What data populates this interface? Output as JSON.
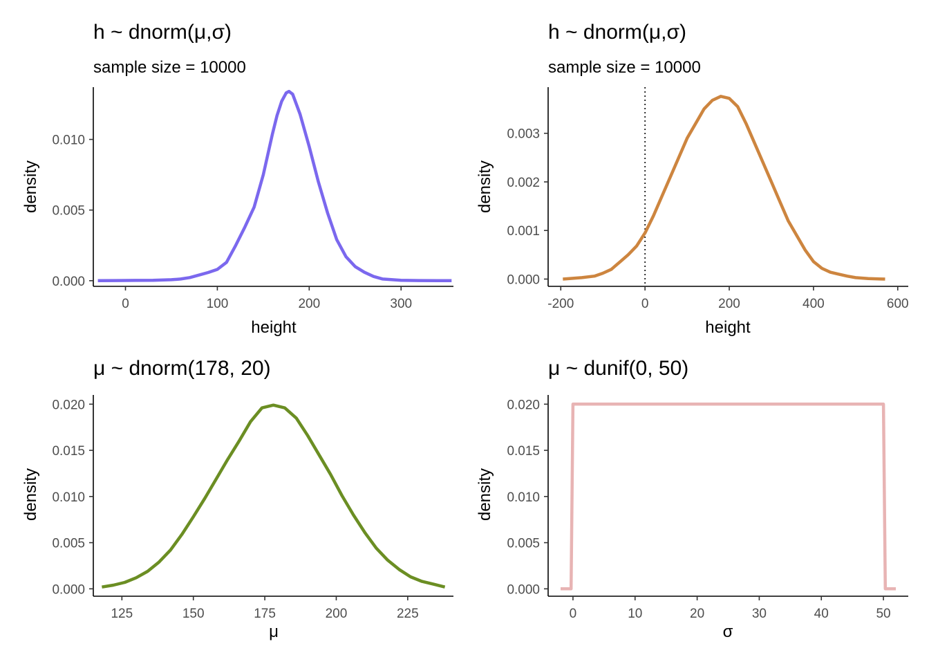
{
  "chart_data": [
    {
      "type": "line",
      "title": "h ~ dnorm(μ,σ)",
      "subtitle": "sample size = 10000",
      "xlabel": "height",
      "ylabel": "density",
      "xlim": [
        -35,
        357
      ],
      "ylim": [
        -0.0004,
        0.0137
      ],
      "xticks": [
        0,
        100,
        200,
        300
      ],
      "xtick_labels": [
        "0",
        "100",
        "200",
        "300"
      ],
      "yticks": [
        0,
        0.005,
        0.01
      ],
      "ytick_labels": [
        "0.000",
        "0.005",
        "0.010"
      ],
      "color": "#7B68EE",
      "series": [
        {
          "x": [
            -30,
            -10,
            10,
            30,
            50,
            60,
            70,
            80,
            90,
            100,
            110,
            120,
            130,
            140,
            150,
            160,
            165,
            170,
            175,
            178,
            182,
            190,
            200,
            210,
            220,
            230,
            240,
            250,
            260,
            270,
            280,
            300,
            320,
            340,
            355
          ],
          "y": [
            0.0,
            1e-05,
            2e-05,
            3e-05,
            7e-05,
            0.00012,
            0.00022,
            0.0004,
            0.00058,
            0.0008,
            0.0013,
            0.0025,
            0.0038,
            0.0052,
            0.0075,
            0.0104,
            0.0117,
            0.0127,
            0.0133,
            0.0134,
            0.0132,
            0.0118,
            0.0095,
            0.007,
            0.0048,
            0.0029,
            0.0017,
            0.001,
            0.0006,
            0.0003,
            0.00012,
            3e-05,
            1e-05,
            0.0,
            0.0
          ]
        }
      ]
    },
    {
      "type": "line",
      "title": "h ~ dnorm(μ,σ)",
      "subtitle": "sample size = 10000",
      "xlabel": "height",
      "ylabel": "density",
      "xlim": [
        -230,
        625
      ],
      "ylim": [
        -0.00015,
        0.00395
      ],
      "xticks": [
        -200,
        0,
        200,
        400,
        600
      ],
      "xtick_labels": [
        "-200",
        "0",
        "200",
        "400",
        "600"
      ],
      "yticks": [
        0,
        0.001,
        0.002,
        0.003
      ],
      "ytick_labels": [
        "0.000",
        "0.001",
        "0.002",
        "0.003"
      ],
      "vline_x": 0,
      "color": "#CD853F",
      "series": [
        {
          "x": [
            -195,
            -150,
            -120,
            -100,
            -80,
            -60,
            -40,
            -20,
            0,
            20,
            40,
            60,
            80,
            100,
            120,
            140,
            160,
            180,
            200,
            220,
            240,
            260,
            280,
            300,
            320,
            340,
            360,
            380,
            400,
            420,
            440,
            460,
            480,
            500,
            530,
            570
          ],
          "y": [
            0.0,
            3e-05,
            6e-05,
            0.00012,
            0.0002,
            0.00035,
            0.0005,
            0.00068,
            0.00095,
            0.0013,
            0.0017,
            0.0021,
            0.0025,
            0.0029,
            0.0032,
            0.0035,
            0.00368,
            0.00376,
            0.00372,
            0.00355,
            0.0032,
            0.0028,
            0.0024,
            0.002,
            0.0016,
            0.0012,
            0.0009,
            0.0006,
            0.00036,
            0.00022,
            0.00014,
            0.0001,
            6e-05,
            3e-05,
            1e-05,
            0.0
          ]
        }
      ]
    },
    {
      "type": "line",
      "title": "μ ~ dnorm(178, 20)",
      "subtitle": "",
      "xlabel": "μ",
      "ylabel": "density",
      "xlim": [
        115,
        241
      ],
      "ylim": [
        -0.0008,
        0.021
      ],
      "xticks": [
        125,
        150,
        175,
        200,
        225
      ],
      "xtick_labels": [
        "125",
        "150",
        "175",
        "200",
        "225"
      ],
      "yticks": [
        0,
        0.005,
        0.01,
        0.015,
        0.02
      ],
      "ytick_labels": [
        "0.000",
        "0.005",
        "0.010",
        "0.015",
        "0.020"
      ],
      "color": "#6B8E23",
      "series": [
        {
          "x": [
            118,
            122,
            126,
            130,
            134,
            138,
            142,
            146,
            150,
            154,
            158,
            162,
            166,
            170,
            174,
            178,
            182,
            186,
            190,
            194,
            198,
            202,
            206,
            210,
            214,
            218,
            222,
            226,
            230,
            234,
            238
          ],
          "y": [
            0.0002,
            0.0004,
            0.0007,
            0.0012,
            0.0019,
            0.0029,
            0.0042,
            0.0059,
            0.0078,
            0.0098,
            0.0119,
            0.014,
            0.016,
            0.0181,
            0.0196,
            0.0199,
            0.0196,
            0.0185,
            0.0166,
            0.0145,
            0.0124,
            0.0101,
            0.008,
            0.0061,
            0.0044,
            0.0031,
            0.0021,
            0.0013,
            0.0008,
            0.0005,
            0.0002
          ]
        }
      ]
    },
    {
      "type": "line",
      "title": "μ ~ dunif(0, 50)",
      "subtitle": "",
      "xlabel": "σ",
      "ylabel": "density",
      "xlim": [
        -4,
        54
      ],
      "ylim": [
        -0.0008,
        0.021
      ],
      "xticks": [
        0,
        10,
        20,
        30,
        40,
        50
      ],
      "xtick_labels": [
        "0",
        "10",
        "20",
        "30",
        "40",
        "50"
      ],
      "yticks": [
        0,
        0.005,
        0.01,
        0.015,
        0.02
      ],
      "ytick_labels": [
        "0.000",
        "0.005",
        "0.010",
        "0.015",
        "0.020"
      ],
      "color": "#E8B4B4",
      "series": [
        {
          "x": [
            -2,
            -0.3,
            0,
            50,
            50.3,
            52
          ],
          "y": [
            0,
            0,
            0.02,
            0.02,
            0,
            0
          ]
        }
      ]
    }
  ]
}
